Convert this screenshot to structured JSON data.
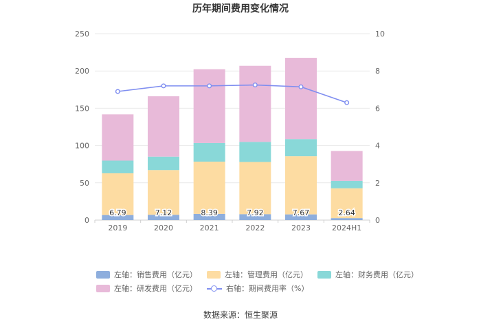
{
  "chart_data": {
    "type": "bar",
    "title": "历年期间费用变化情况",
    "categories": [
      "2019",
      "2020",
      "2021",
      "2022",
      "2023",
      "2024H1"
    ],
    "left_axis": {
      "min": 0,
      "max": 250,
      "ticks": [
        "0",
        "50",
        "100",
        "150",
        "200",
        "250"
      ]
    },
    "right_axis": {
      "min": 0,
      "max": 10,
      "ticks": [
        "0",
        "2",
        "4",
        "6",
        "8",
        "10"
      ]
    },
    "series": [
      {
        "name": "左轴：销售费用（亿元）",
        "type": "bar",
        "color": "#8eaedd",
        "values": [
          6.79,
          7.12,
          8.39,
          7.92,
          7.67,
          2.64
        ]
      },
      {
        "name": "左轴：管理费用（亿元）",
        "type": "bar",
        "color": "#fddca2",
        "values": [
          56,
          60,
          70,
          70,
          78,
          40
        ]
      },
      {
        "name": "左轴：财务费用（亿元）",
        "type": "bar",
        "color": "#89d8d8",
        "values": [
          17,
          18,
          25,
          27,
          23,
          10
        ]
      },
      {
        "name": "左轴：研发费用（亿元）",
        "type": "bar",
        "color": "#e8bad9",
        "values": [
          62,
          81,
          99,
          102,
          109,
          40
        ]
      },
      {
        "name": "右轴：期间费用率（%）",
        "type": "line",
        "color": "#7f8ef0",
        "values": [
          6.9,
          7.2,
          7.2,
          7.25,
          7.15,
          6.3
        ]
      }
    ],
    "data_labels": [
      "6.79",
      "7.12",
      "8.39",
      "7.92",
      "7.67",
      "2.64"
    ]
  },
  "legend": [
    {
      "label": "左轴：销售费用（亿元）",
      "color": "#8eaedd",
      "kind": "bar"
    },
    {
      "label": "左轴：管理费用（亿元）",
      "color": "#fddca2",
      "kind": "bar"
    },
    {
      "label": "左轴：财务费用（亿元）",
      "color": "#89d8d8",
      "kind": "bar"
    },
    {
      "label": "左轴：研发费用（亿元）",
      "color": "#e8bad9",
      "kind": "bar"
    },
    {
      "label": "右轴：期间费用率（%）",
      "color": "#7f8ef0",
      "kind": "line"
    }
  ],
  "source": "数据来源：恒生聚源"
}
